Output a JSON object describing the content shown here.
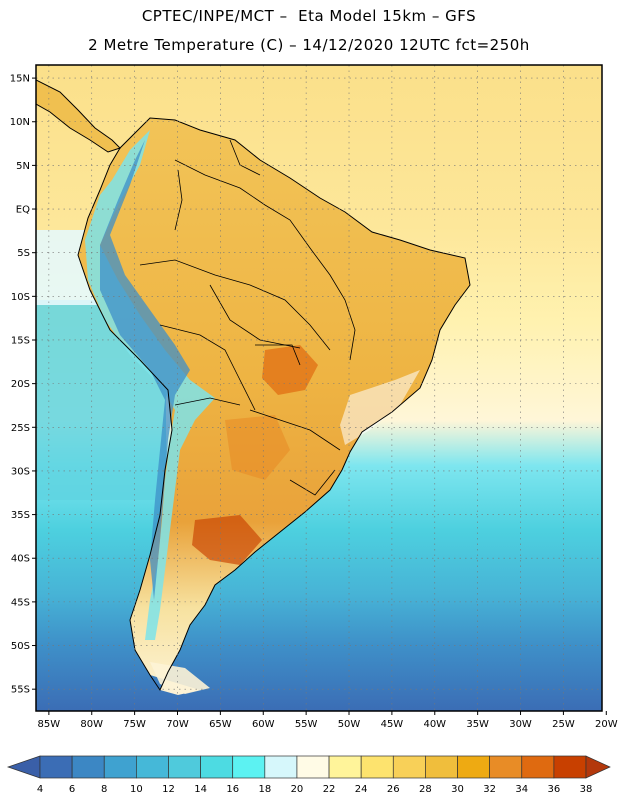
{
  "title_line1": "CPTEC/INPE/MCT –  Eta Model 15km – GFS",
  "title_line2": "2 Metre Temperature (C) – 14/12/2020 12UTC fct=250h",
  "map": {
    "lat_labels": [
      "15N",
      "10N",
      "5N",
      "EQ",
      "5S",
      "10S",
      "15S",
      "20S",
      "25S",
      "30S",
      "35S",
      "40S",
      "45S",
      "50S",
      "55S"
    ],
    "lat_values": [
      15,
      10,
      5,
      0,
      -5,
      -10,
      -15,
      -20,
      -25,
      -30,
      -35,
      -40,
      -45,
      -50,
      -55
    ],
    "lon_labels": [
      "85W",
      "80W",
      "75W",
      "70W",
      "65W",
      "60W",
      "55W",
      "50W",
      "45W",
      "40W",
      "35W",
      "30W",
      "25W",
      "20W"
    ],
    "lon_values": [
      -85,
      -80,
      -75,
      -70,
      -65,
      -60,
      -55,
      -50,
      -45,
      -40,
      -35,
      -30,
      -25,
      -20
    ],
    "lat_range": [
      -57.5,
      16.5
    ],
    "lon_range": [
      -86.5,
      -20.5
    ]
  },
  "colorbar": {
    "labels": [
      "4",
      "6",
      "8",
      "10",
      "12",
      "14",
      "16",
      "18",
      "20",
      "22",
      "24",
      "26",
      "28",
      "30",
      "32",
      "34",
      "36",
      "38"
    ],
    "colors": [
      "#3b6db5",
      "#3c87c4",
      "#3fa2d0",
      "#45b8d8",
      "#4fcadc",
      "#4ddbe2",
      "#5cf2f2",
      "#d6f7fb",
      "#fffbe6",
      "#fff49a",
      "#fde36e",
      "#f8d058",
      "#f0be3c",
      "#eeaa12",
      "#e88c26",
      "#df6a10",
      "#c84000"
    ],
    "low_color": "#3a5fa8",
    "high_color": "#b3380c"
  }
}
